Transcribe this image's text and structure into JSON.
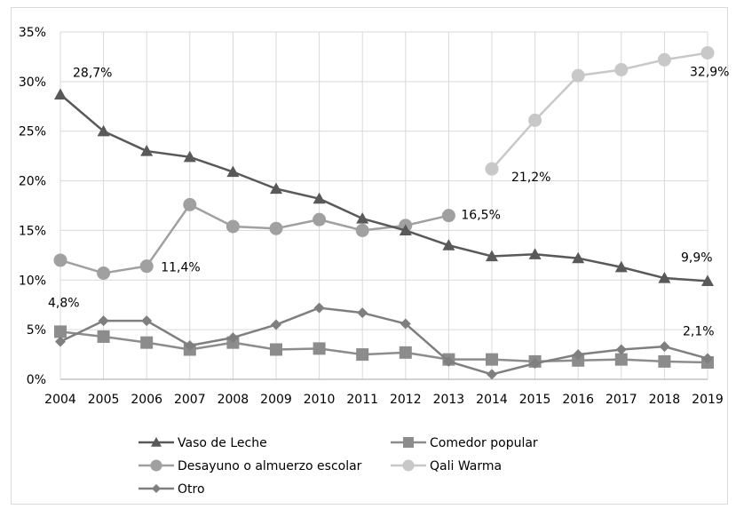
{
  "chart_data": {
    "type": "line",
    "categories": [
      "2004",
      "2005",
      "2006",
      "2007",
      "2008",
      "2009",
      "2010",
      "2011",
      "2012",
      "2013",
      "2014",
      "2015",
      "2016",
      "2017",
      "2018",
      "2019"
    ],
    "ylim": [
      0,
      35
    ],
    "y_ticks": [
      0,
      5,
      10,
      15,
      20,
      25,
      30,
      35
    ],
    "y_tick_labels": [
      "0%",
      "5%",
      "10%",
      "15%",
      "20%",
      "25%",
      "30%",
      "35%"
    ],
    "grid": "horizontal and vertical",
    "legend_position": "bottom",
    "series": [
      {
        "name": "Vaso de Leche",
        "color": "#595959",
        "marker": "triangle",
        "values": [
          28.7,
          25.0,
          23.0,
          22.4,
          20.9,
          19.2,
          18.2,
          16.2,
          15.0,
          13.5,
          12.4,
          12.6,
          12.2,
          11.3,
          10.2,
          9.9
        ]
      },
      {
        "name": "Comedor popular",
        "color": "#8c8c8c",
        "marker": "square",
        "values": [
          4.8,
          4.3,
          3.7,
          3.0,
          3.7,
          3.0,
          3.1,
          2.5,
          2.7,
          2.0,
          2.0,
          1.8,
          1.9,
          2.0,
          1.8,
          1.7
        ]
      },
      {
        "name": "Desayuno o almuerzo escolar",
        "color": "#a0a0a0",
        "marker": "circle",
        "values": [
          12.0,
          10.7,
          11.4,
          17.6,
          15.4,
          15.2,
          16.1,
          15.0,
          15.5,
          16.5,
          null,
          null,
          null,
          null,
          null,
          null
        ]
      },
      {
        "name": "Qali Warma",
        "color": "#c8c8c8",
        "marker": "circle",
        "values": [
          null,
          null,
          null,
          null,
          null,
          null,
          null,
          null,
          null,
          null,
          21.2,
          26.1,
          30.6,
          31.2,
          32.2,
          32.9
        ]
      },
      {
        "name": "Otro",
        "color": "#7f7f7f",
        "marker": "diamond",
        "values": [
          3.8,
          5.9,
          5.9,
          3.4,
          4.2,
          5.5,
          7.2,
          6.7,
          5.6,
          1.8,
          0.5,
          1.6,
          2.5,
          3.0,
          3.3,
          2.1
        ]
      }
    ],
    "annotations": [
      {
        "text": "28,7%",
        "series": 0,
        "index": 0
      },
      {
        "text": "9,9%",
        "series": 0,
        "index": 15
      },
      {
        "text": "4,8%",
        "series": 1,
        "index": 0
      },
      {
        "text": "11,4%",
        "series": 2,
        "index": 2
      },
      {
        "text": "16,5%",
        "series": 2,
        "index": 9
      },
      {
        "text": "21,2%",
        "series": 3,
        "index": 10
      },
      {
        "text": "32,9%",
        "series": 3,
        "index": 15
      },
      {
        "text": "2,1%",
        "series": 4,
        "index": 15
      }
    ]
  }
}
